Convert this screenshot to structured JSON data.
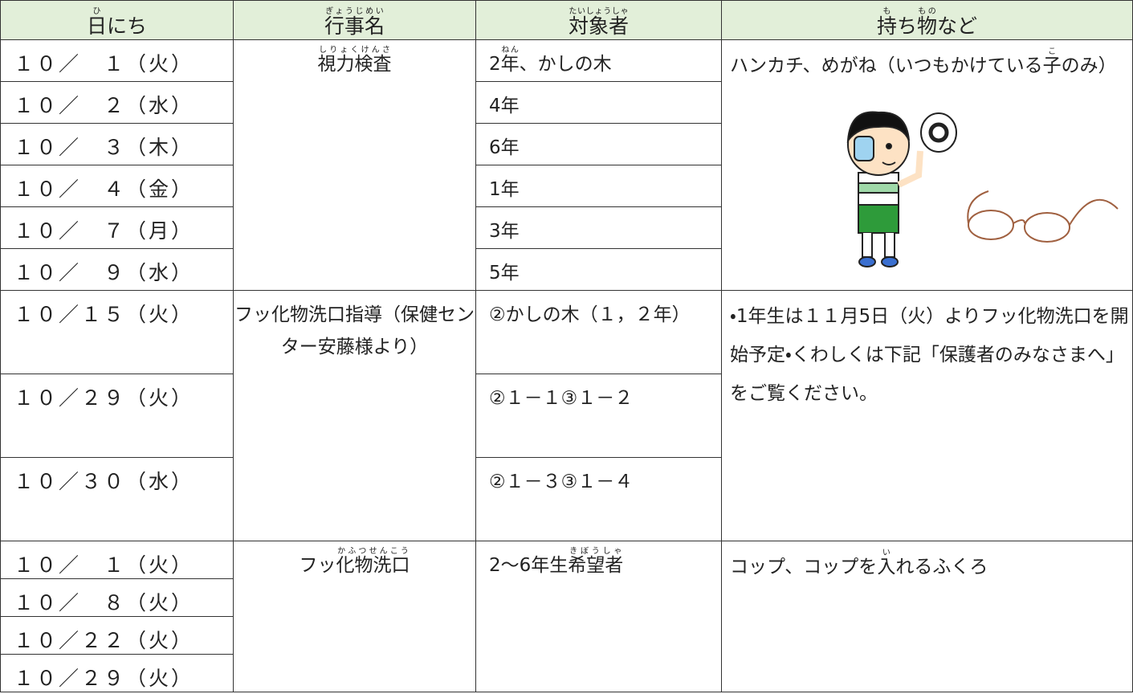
{
  "header": [
    [
      {
        "b": "日",
        "r": "ひ"
      },
      {
        "t": "にち"
      }
    ],
    [
      {
        "b": "行事名",
        "r": "ぎょうじめい"
      }
    ],
    [
      {
        "b": "対象者",
        "r": "たいしょうしゃ"
      }
    ],
    [
      {
        "b": "持",
        "r": "も"
      },
      {
        "t": "ち"
      },
      {
        "b": "物",
        "r": "もの"
      },
      {
        "t": "など"
      }
    ]
  ],
  "groups": [
    {
      "dates": [
        "１０／　１（火）",
        "１０／　２（水）",
        "１０／　３（木）",
        "１０／　４（金）",
        "１０／　７（月）",
        "１０／　９（水）"
      ],
      "event": [
        [
          {
            "b": "視力検査",
            "r": "しりょくけんさ"
          }
        ]
      ],
      "targets": [
        [
          [
            {
              "t": "2"
            },
            {
              "b": "年",
              "r": "ねん"
            },
            {
              "t": "、かしの木"
            }
          ]
        ],
        [
          "4年"
        ],
        [
          "6年"
        ],
        [
          "1年"
        ],
        [
          "3年"
        ],
        [
          "5年"
        ]
      ],
      "items": [
        "ハンカチ、めがね（いつもかけている",
        [
          {
            "b": "子",
            "r": "こ"
          },
          {
            "t": "のみ）"
          }
        ]
      ]
    },
    {
      "dates": [
        "１０／１５（火）",
        "１０／２９（火）",
        "１０／３０（水）"
      ],
      "event": [
        "フッ化物洗口指導",
        "（保健センター安藤",
        "様より）"
      ],
      "targets": [
        [
          "②かしの木",
          "（１，２年）"
        ],
        [
          "②１－１",
          "③１－２"
        ],
        [
          "②１－３",
          "③１－４"
        ]
      ],
      "items": [
        "・1年生は１１月5日（火）よりフッ化",
        "物洗口を開始予定",
        "・くわしくは下記「保護者のみなさま",
        "へ」をご覧ください。"
      ]
    },
    {
      "dates": [
        "１０／　１（火）",
        "１０／　８（火）",
        "１０／２２（火）",
        "１０／２９（火）"
      ],
      "event": [
        [
          {
            "t": "フッ"
          },
          {
            "b": "化物洗口",
            "r": "かふつせんこう"
          }
        ]
      ],
      "targets": [
        [
          [
            {
              "t": "2～6年生"
            },
            {
              "b": "希望者",
              "r": "きぼうしゃ"
            }
          ]
        ]
      ],
      "items": [
        [
          {
            "t": "コップ、コップを"
          },
          {
            "b": "入",
            "r": "い"
          },
          {
            "t": "れるふくろ"
          }
        ]
      ]
    }
  ]
}
